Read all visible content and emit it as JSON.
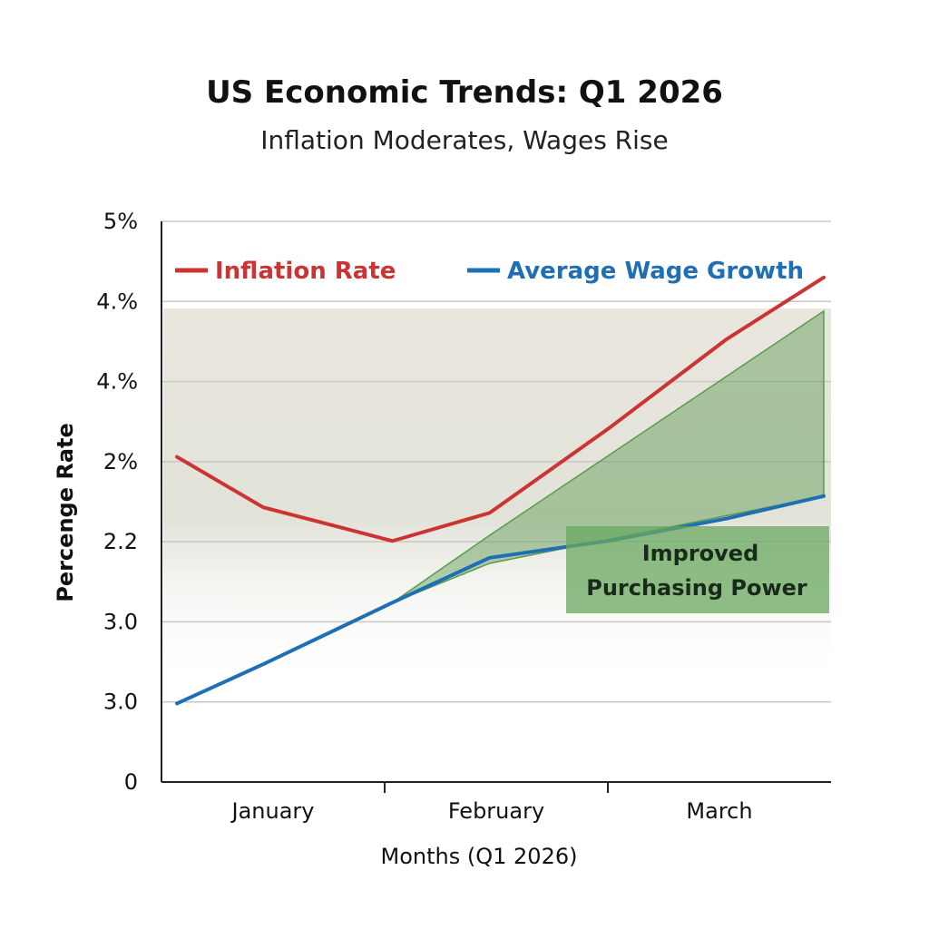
{
  "chart_data": {
    "type": "line",
    "title": "US Economic Trends: Q1 2026",
    "subtitle": "Inflation Moderates, Wages Rise",
    "xlabel": "Months (Q1 2026)",
    "ylabel": "Percenge Rate",
    "categories": [
      "January",
      "February",
      "March"
    ],
    "y_tick_labels": [
      "0",
      "3.0",
      "3.0",
      "2.2",
      "2%",
      "4.%",
      "4.%",
      "5%"
    ],
    "ylim": [
      0,
      5
    ],
    "grid": true,
    "legend_position": "top",
    "series": [
      {
        "name": "Inflation Rate",
        "color": "#cc3333",
        "x": [
          0,
          0.4,
          1.0,
          1.45,
          2.0,
          2.55,
          3.0
        ],
        "values": [
          2.9,
          2.45,
          2.15,
          2.4,
          3.15,
          3.95,
          4.5
        ]
      },
      {
        "name": "Average Wage Growth",
        "color": "#1f6fb5",
        "x": [
          0,
          0.4,
          1.0,
          1.45,
          2.0,
          2.55,
          3.0
        ],
        "values": [
          0.7,
          1.05,
          1.6,
          2.0,
          2.15,
          2.35,
          2.55
        ]
      }
    ],
    "shaded_region": {
      "color": "#5a9a50",
      "x": [
        1.0,
        1.45,
        3.0
      ],
      "upper": [
        1.6,
        2.2,
        4.2
      ],
      "lower": [
        1.6,
        1.95,
        2.55
      ]
    },
    "annotation": {
      "line1": "Improved",
      "line2": "Purchasing Power",
      "color": "#6aa860"
    }
  }
}
